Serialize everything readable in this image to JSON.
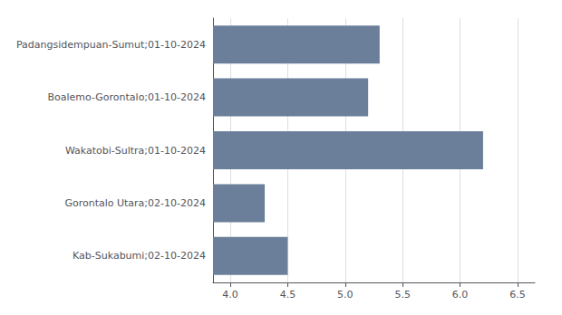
{
  "chart_data": {
    "type": "bar",
    "orientation": "horizontal",
    "categories": [
      "Padangsidempuan-Sumut;01-10-2024",
      "Boalemo-Gorontalo;01-10-2024",
      "Wakatobi-Sultra;01-10-2024",
      "Gorontalo Utara;02-10-2024",
      "Kab-Sukabumi;02-10-2024"
    ],
    "values": [
      5.3,
      5.2,
      6.2,
      4.3,
      4.5
    ],
    "color": "#6b7f9a",
    "xlim": [
      3.85,
      6.65
    ],
    "xticks": [
      {
        "value": 4.0,
        "label": "4.0"
      },
      4.5,
      {
        "value": 5.0,
        "label": "5.0"
      },
      5.5,
      {
        "value": 6.0,
        "label": "6.0"
      },
      6.5
    ],
    "grid": true
  }
}
